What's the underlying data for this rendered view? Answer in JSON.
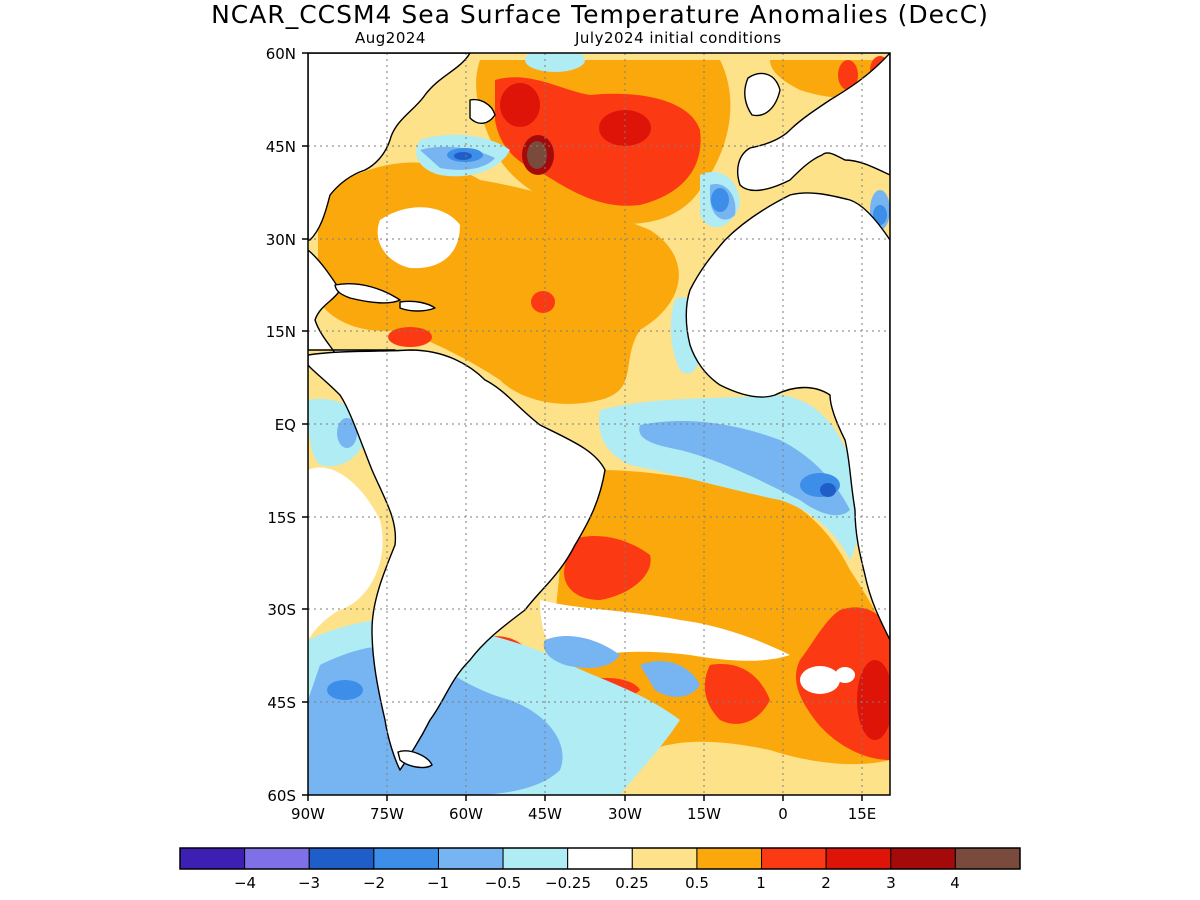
{
  "title": "NCAR_CCSM4 Sea Surface Temperature Anomalies (DecC)",
  "subtitle_left": "Aug2024",
  "subtitle_right": "July2024 initial conditions",
  "map": {
    "lat_range": [
      -60,
      60
    ],
    "lon_range": [
      -90,
      20
    ],
    "lat_ticks": [
      "60N",
      "45N",
      "30N",
      "15N",
      "EQ",
      "15S",
      "30S",
      "45S",
      "60S"
    ],
    "lon_ticks": [
      "90W",
      "75W",
      "60W",
      "45W",
      "30W",
      "15W",
      "0",
      "15E"
    ],
    "grid": "dotted"
  },
  "legend": {
    "colors": [
      "#3e1fb3",
      "#8070e8",
      "#1f5ec8",
      "#3d8ee8",
      "#76b4f2",
      "#b0ecf4",
      "#ffffff",
      "#fde28a",
      "#fba80c",
      "#fb3a14",
      "#de1408",
      "#a50a0a",
      "#7a4a3c"
    ],
    "labels": [
      "−4",
      "−3",
      "−2",
      "−1",
      "−0.5",
      "−0.25",
      "0.25",
      "0.5",
      "1",
      "2",
      "3",
      "4"
    ]
  }
}
